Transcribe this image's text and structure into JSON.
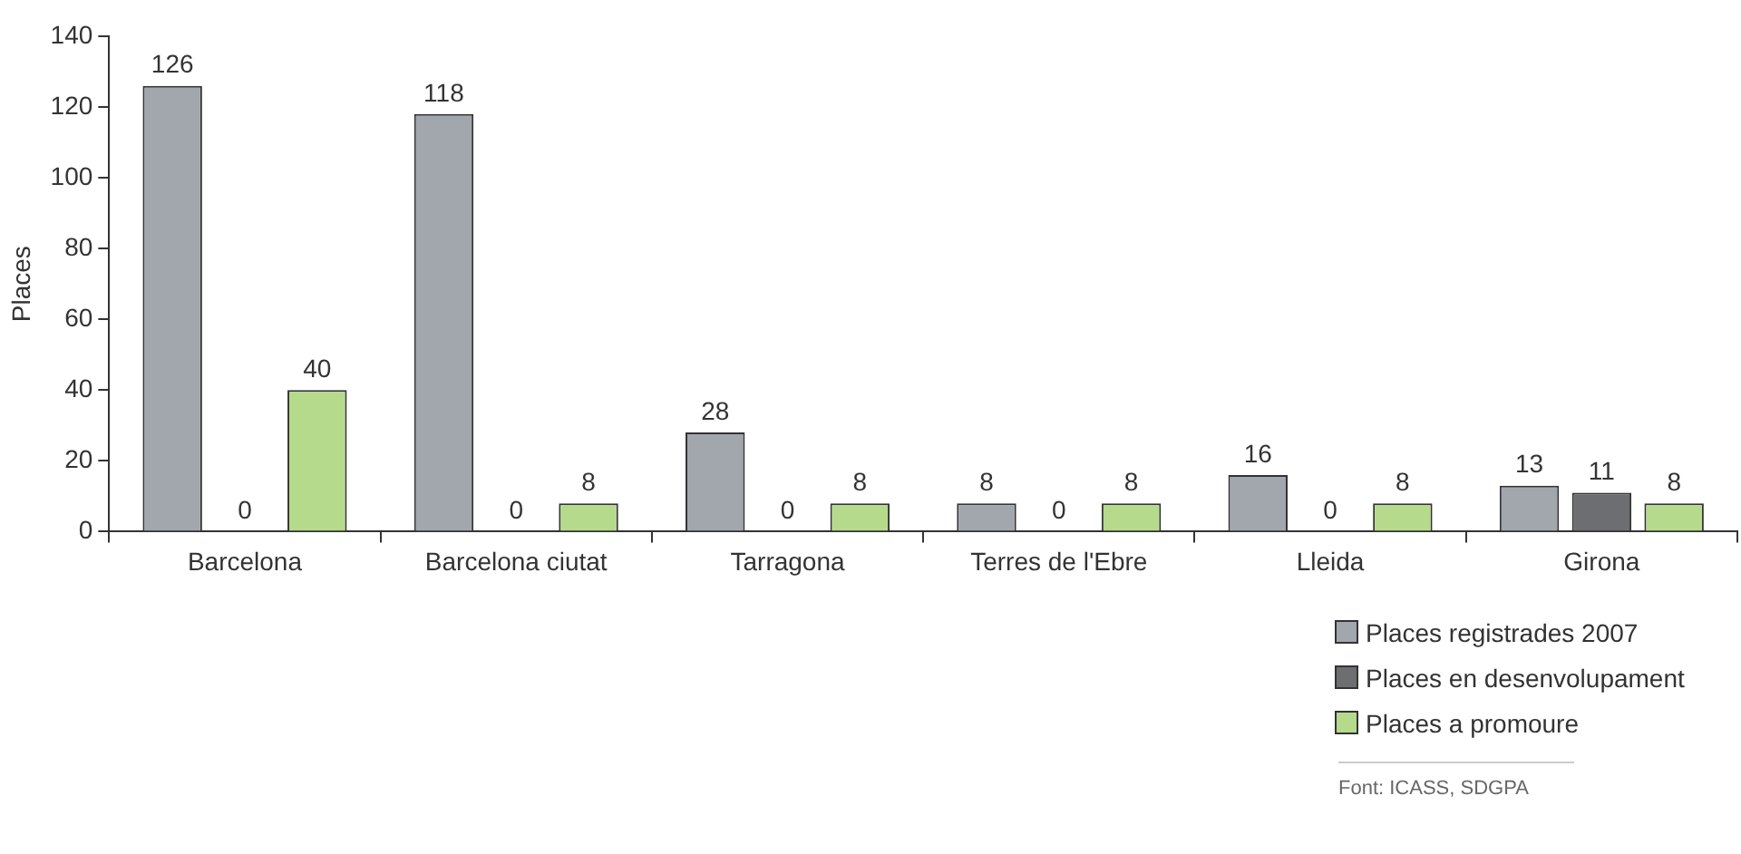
{
  "chart_data": {
    "type": "bar",
    "ylabel": "Places",
    "categories": [
      "Barcelona",
      "Barcelona ciutat",
      "Tarragona",
      "Terres de l'Ebre",
      "Lleida",
      "Girona"
    ],
    "series": [
      {
        "name": "Places registrades 2007",
        "color": "#a2a6ad",
        "values": [
          126,
          118,
          28,
          8,
          16,
          13
        ]
      },
      {
        "name": "Places en desenvolupament",
        "color": "#6d6e71",
        "values": [
          0,
          0,
          0,
          0,
          0,
          11
        ]
      },
      {
        "name": "Places a promoure",
        "color": "#b6da8c",
        "values": [
          40,
          8,
          8,
          8,
          8,
          8
        ]
      }
    ],
    "ylim": [
      0,
      140
    ],
    "yticks": [
      0,
      20,
      40,
      60,
      80,
      100,
      120,
      140
    ],
    "grid": false,
    "legend": "bottom right",
    "data_labels": true,
    "annotations": [
      "Font: ICASS, SDGPA"
    ]
  }
}
